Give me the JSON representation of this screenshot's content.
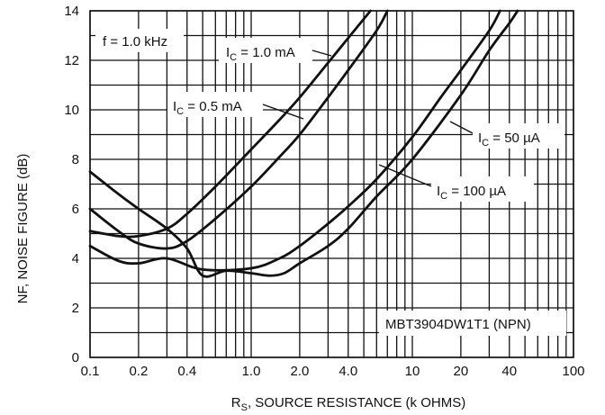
{
  "chart_data": {
    "type": "line",
    "title": "",
    "xlabel": {
      "main": "R",
      "sub": "S",
      "rest": ", SOURCE RESISTANCE (k OHMS)"
    },
    "ylabel": "NF, NOISE FIGURE (dB)",
    "x_scale": "log",
    "xlim": [
      0.1,
      100
    ],
    "ylim": [
      0,
      14
    ],
    "grid": true,
    "x_ticks": [
      {
        "value": 0.1,
        "label": "0.1"
      },
      {
        "value": 0.2,
        "label": "0.2"
      },
      {
        "value": 0.4,
        "label": "0.4"
      },
      {
        "value": 1.0,
        "label": "1.0"
      },
      {
        "value": 2.0,
        "label": "2.0"
      },
      {
        "value": 4.0,
        "label": "4.0"
      },
      {
        "value": 10,
        "label": "10"
      },
      {
        "value": 20,
        "label": "20"
      },
      {
        "value": 40,
        "label": "40"
      },
      {
        "value": 100,
        "label": "100"
      }
    ],
    "y_ticks": [
      {
        "value": 0,
        "label": "0"
      },
      {
        "value": 2,
        "label": "2"
      },
      {
        "value": 4,
        "label": "4"
      },
      {
        "value": 6,
        "label": "6"
      },
      {
        "value": 8,
        "label": "8"
      },
      {
        "value": 10,
        "label": "10"
      },
      {
        "value": 12,
        "label": "12"
      },
      {
        "value": 14,
        "label": "14"
      }
    ],
    "series": [
      {
        "name": {
          "main": "I",
          "sub": "C",
          "rest": " = 1.0 mA"
        },
        "points": [
          [
            0.1,
            5.1
          ],
          [
            0.15,
            4.9
          ],
          [
            0.2,
            4.9
          ],
          [
            0.3,
            5.2
          ],
          [
            0.4,
            5.8
          ],
          [
            0.6,
            6.9
          ],
          [
            1.0,
            8.4
          ],
          [
            1.5,
            9.6
          ],
          [
            2.0,
            10.5
          ],
          [
            3.0,
            11.9
          ],
          [
            4.0,
            12.9
          ],
          [
            5.5,
            14.0
          ]
        ]
      },
      {
        "name": {
          "main": "I",
          "sub": "C",
          "rest": " = 0.5 mA"
        },
        "points": [
          [
            0.1,
            6.0
          ],
          [
            0.15,
            5.1
          ],
          [
            0.2,
            4.6
          ],
          [
            0.3,
            4.4
          ],
          [
            0.4,
            4.7
          ],
          [
            0.6,
            5.6
          ],
          [
            1.0,
            6.9
          ],
          [
            1.5,
            8.1
          ],
          [
            2.0,
            9.0
          ],
          [
            3.0,
            10.5
          ],
          [
            4.0,
            11.6
          ],
          [
            6.0,
            13.2
          ],
          [
            7.0,
            14.0
          ]
        ]
      },
      {
        "name": {
          "main": "I",
          "sub": "C",
          "rest": " = 100 µA"
        },
        "points": [
          [
            0.1,
            4.5
          ],
          [
            0.15,
            3.9
          ],
          [
            0.2,
            3.8
          ],
          [
            0.3,
            4.0
          ],
          [
            0.5,
            3.55
          ],
          [
            1.0,
            3.6
          ],
          [
            1.5,
            4.0
          ],
          [
            2.0,
            4.5
          ],
          [
            3.0,
            5.4
          ],
          [
            4.0,
            6.1
          ],
          [
            6.0,
            7.2
          ],
          [
            10,
            8.9
          ],
          [
            15,
            10.5
          ],
          [
            20,
            11.6
          ],
          [
            30,
            13.2
          ],
          [
            35,
            14.0
          ]
        ]
      },
      {
        "name": {
          "main": "I",
          "sub": "C",
          "rest": " = 50 µA"
        },
        "points": [
          [
            0.1,
            7.5
          ],
          [
            0.15,
            6.6
          ],
          [
            0.2,
            6.0
          ],
          [
            0.3,
            5.2
          ],
          [
            0.4,
            4.4
          ],
          [
            0.5,
            3.3
          ],
          [
            0.7,
            3.5
          ],
          [
            1.0,
            3.4
          ],
          [
            1.3,
            3.3
          ],
          [
            1.6,
            3.4
          ],
          [
            2.0,
            3.8
          ],
          [
            3.0,
            4.5
          ],
          [
            4.0,
            5.2
          ],
          [
            6.0,
            6.5
          ],
          [
            10,
            8.0
          ],
          [
            20,
            10.6
          ],
          [
            30,
            12.4
          ],
          [
            40,
            13.5
          ],
          [
            45,
            14.0
          ]
        ]
      }
    ],
    "annotations": [
      {
        "text": "f = 1.0 kHz"
      },
      {
        "text": "MBT3904DW1T1 (NPN)"
      }
    ]
  }
}
